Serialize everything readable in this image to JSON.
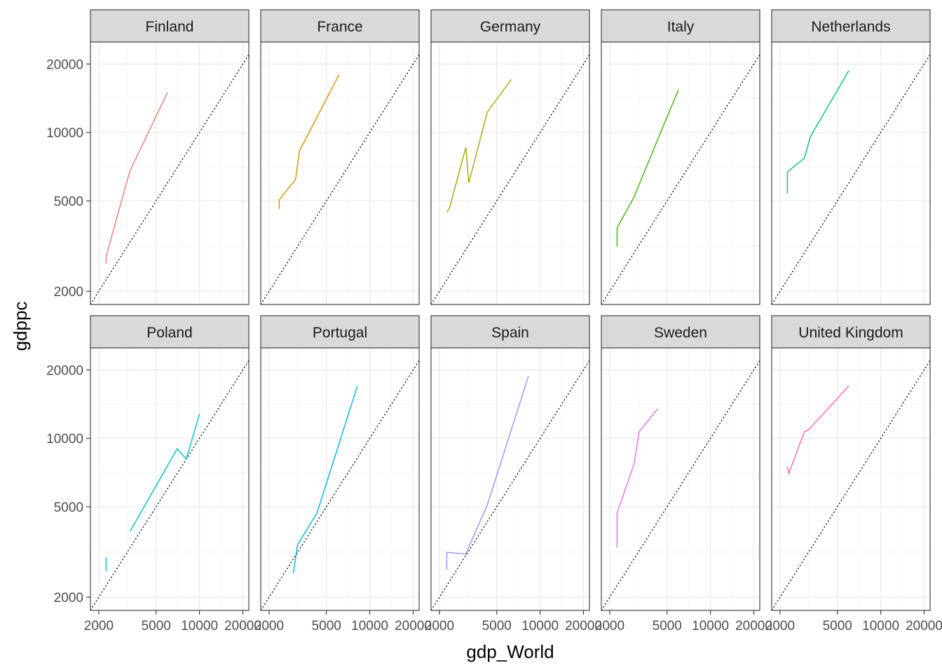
{
  "chart_data": {
    "type": "line",
    "facet_layout": {
      "rows": 2,
      "cols": 5
    },
    "xlabel": "gdp_World",
    "ylabel": "gdppc",
    "x_scale": "log10",
    "y_scale": "log10",
    "xlim": [
      1750,
      22000
    ],
    "ylim": [
      1750,
      25000
    ],
    "x_ticks": [
      2000,
      5000,
      10000,
      20000
    ],
    "y_ticks": [
      2000,
      5000,
      10000,
      20000
    ],
    "x_tick_labels": [
      "2000",
      "5000",
      "10000",
      "20000"
    ],
    "y_tick_labels": [
      "2000",
      "5000",
      "10000",
      "20000"
    ],
    "grid": true,
    "reference_line": {
      "type": "identity",
      "style": "dotted",
      "color": "#000000"
    },
    "panels": [
      {
        "name": "Finland",
        "color": "#F8766D",
        "points": [
          [
            2250,
            2650
          ],
          [
            2250,
            2850
          ],
          [
            2900,
            5100
          ],
          [
            3300,
            6800
          ],
          [
            6000,
            15000
          ]
        ]
      },
      {
        "name": "France",
        "color": "#D89000",
        "points": [
          [
            2350,
            4600
          ],
          [
            2350,
            5050
          ],
          [
            2500,
            5300
          ],
          [
            3050,
            6200
          ],
          [
            3250,
            8300
          ],
          [
            6100,
            17900
          ]
        ]
      },
      {
        "name": "Germany",
        "color": "#A3A500",
        "points": [
          [
            2250,
            4450
          ],
          [
            2350,
            4650
          ],
          [
            3050,
            8600
          ],
          [
            3200,
            6000
          ],
          [
            4300,
            12300
          ],
          [
            6300,
            17100
          ]
        ]
      },
      {
        "name": "Italy",
        "color": "#39B600",
        "points": [
          [
            2250,
            3150
          ],
          [
            2250,
            3800
          ],
          [
            2950,
            5200
          ],
          [
            4300,
            9300
          ],
          [
            6000,
            15400
          ]
        ]
      },
      {
        "name": "Netherlands",
        "color": "#00BF7D",
        "points": [
          [
            2250,
            5400
          ],
          [
            2250,
            6700
          ],
          [
            2950,
            7700
          ],
          [
            3250,
            9600
          ],
          [
            6000,
            18700
          ]
        ]
      },
      {
        "name": "Poland",
        "color": "#00BFC4",
        "points": [
          [
            2250,
            2600
          ],
          [
            2250,
            3000
          ],
          null,
          [
            3300,
            3900
          ],
          [
            7000,
            9000
          ],
          [
            8100,
            8100
          ],
          [
            10000,
            12800
          ]
        ]
      },
      {
        "name": "Portugal",
        "color": "#00B0F6",
        "points": [
          [
            2950,
            2550
          ],
          [
            3150,
            3400
          ],
          [
            4300,
            4700
          ],
          [
            8200,
            17000
          ]
        ]
      },
      {
        "name": "Spain",
        "color": "#9590FF",
        "points": [
          [
            2250,
            2650
          ],
          [
            2250,
            3150
          ],
          [
            3050,
            3100
          ],
          [
            4300,
            5100
          ],
          [
            8300,
            18800
          ]
        ]
      },
      {
        "name": "Sweden",
        "color": "#E76BF3",
        "points": [
          [
            2250,
            3300
          ],
          [
            2250,
            4700
          ],
          [
            2950,
            7700
          ],
          [
            3200,
            10700
          ],
          [
            4300,
            13500
          ]
        ]
      },
      {
        "name": "United Kingdom",
        "color": "#FF62BC",
        "points": [
          [
            2250,
            7500
          ],
          [
            2300,
            7000
          ],
          [
            2950,
            10700
          ],
          [
            3150,
            10900
          ],
          [
            6000,
            17000
          ]
        ]
      }
    ]
  }
}
